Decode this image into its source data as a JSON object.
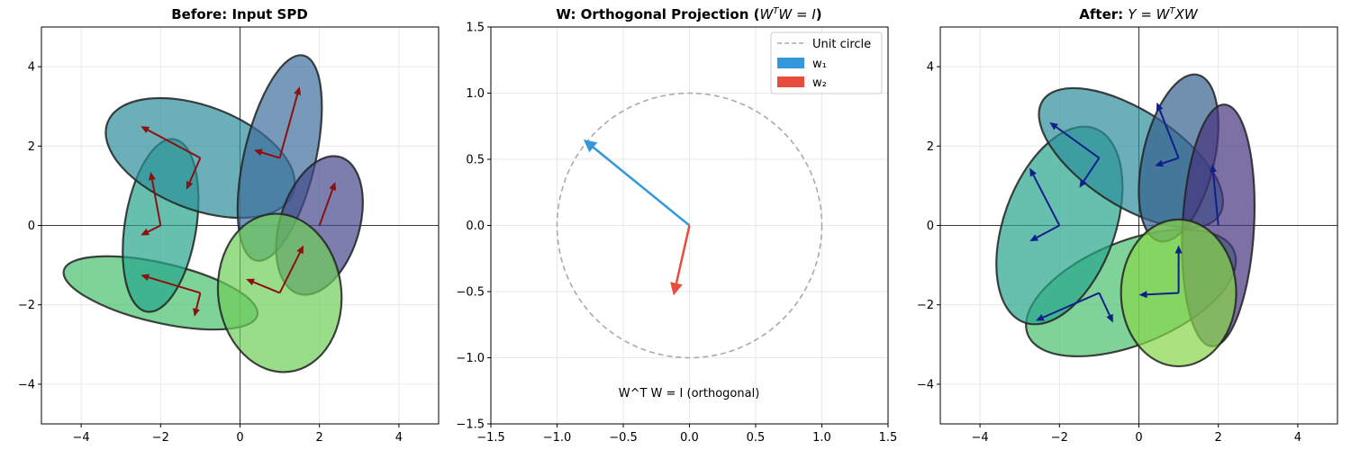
{
  "figure": {
    "panels": [
      {
        "title": "Before: Input SPD",
        "xlim": [
          -5,
          5
        ],
        "ylim": [
          -5,
          5
        ],
        "xticks": [
          -4,
          -2,
          0,
          2,
          4
        ],
        "yticks": [
          -4,
          -2,
          0,
          2,
          4
        ]
      },
      {
        "title_prefix": "W: Orthogonal Projection (",
        "title_math": "W",
        "title_sup": "T",
        "title_math2": "W = I",
        "title_suffix": ")",
        "xlim": [
          -1.5,
          1.5
        ],
        "ylim": [
          -1.5,
          1.5
        ],
        "xticks": [
          -1.5,
          -1.0,
          -0.5,
          0.0,
          0.5,
          1.0,
          1.5
        ],
        "yticks": [
          -1.5,
          -1.0,
          -0.5,
          0.0,
          0.5,
          1.0,
          1.5
        ],
        "annotation": "W^T W = I (orthogonal)",
        "legend": [
          {
            "label": "Unit circle",
            "style": "dashed",
            "color": "#aaaaaa"
          },
          {
            "label": "w₁",
            "style": "patch",
            "color": "#3498db"
          },
          {
            "label": "w₂",
            "style": "patch",
            "color": "#e74c3c"
          }
        ]
      },
      {
        "title_prefix": "After: ",
        "title_math": "Y = W",
        "title_sup": "T",
        "title_math2": "XW",
        "xlim": [
          -5,
          5
        ],
        "ylim": [
          -5,
          5
        ],
        "xticks": [
          -4,
          -2,
          0,
          2,
          4
        ],
        "yticks": [
          -4,
          -2,
          0,
          2,
          4
        ]
      }
    ]
  },
  "chart_data": [
    {
      "type": "scatter",
      "title": "Before: Input SPD",
      "xlim": [
        -5,
        5
      ],
      "ylim": [
        -5,
        5
      ],
      "grid": true,
      "arrow_color": "#8b1010",
      "ellipses": [
        {
          "center": [
            -2.0,
            -1.7
          ],
          "width": 5.0,
          "height": 1.5,
          "angle": -13,
          "color": "#47c16e"
        },
        {
          "center": [
            -2.0,
            0.0
          ],
          "width": 4.4,
          "height": 1.8,
          "angle": 81,
          "color": "#27a58a"
        },
        {
          "center": [
            -1.0,
            1.7
          ],
          "width": 5.0,
          "height": 2.6,
          "angle": -21,
          "color": "#2c8e9a"
        },
        {
          "center": [
            1.0,
            1.7
          ],
          "width": 5.3,
          "height": 1.8,
          "angle": 77,
          "color": "#3d6e9c"
        },
        {
          "center": [
            2.0,
            0.0
          ],
          "width": 3.6,
          "height": 2.0,
          "angle": 73,
          "color": "#44498b"
        },
        {
          "center": [
            1.0,
            -1.7
          ],
          "width": 4.0,
          "height": 3.1,
          "angle": 97,
          "color": "#6dcd59"
        }
      ],
      "arrows": [
        {
          "from": [
            -1.0,
            -1.7
          ],
          "to": [
            -2.5,
            -1.25
          ]
        },
        {
          "from": [
            -1.0,
            -1.7
          ],
          "to": [
            -1.15,
            -2.3
          ]
        },
        {
          "from": [
            -2.0,
            0.0
          ],
          "to": [
            -2.25,
            1.35
          ]
        },
        {
          "from": [
            -2.0,
            0.0
          ],
          "to": [
            -2.5,
            -0.25
          ]
        },
        {
          "from": [
            -1.0,
            1.7
          ],
          "to": [
            -2.5,
            2.5
          ]
        },
        {
          "from": [
            -1.0,
            1.7
          ],
          "to": [
            -1.35,
            0.9
          ]
        },
        {
          "from": [
            1.0,
            1.7
          ],
          "to": [
            1.5,
            3.5
          ]
        },
        {
          "from": [
            1.0,
            1.7
          ],
          "to": [
            0.35,
            1.9
          ]
        },
        {
          "from": [
            2.0,
            0.0
          ],
          "to": [
            2.4,
            1.1
          ]
        },
        {
          "from": [
            1.0,
            -1.7
          ],
          "to": [
            1.6,
            -0.5
          ]
        },
        {
          "from": [
            1.0,
            -1.7
          ],
          "to": [
            0.15,
            -1.35
          ]
        }
      ]
    },
    {
      "type": "line",
      "title": "W: Orthogonal Projection (W^T W = I)",
      "xlim": [
        -1.5,
        1.5
      ],
      "ylim": [
        -1.5,
        1.5
      ],
      "grid": true,
      "unit_circle": {
        "radius": 1.0,
        "color": "#aaaaaa"
      },
      "series": [
        {
          "name": "Unit circle",
          "x": [],
          "y": []
        },
        {
          "name": "w₁",
          "x": [
            0.0,
            -0.8
          ],
          "y": [
            0.0,
            0.65
          ],
          "color": "#3498db"
        },
        {
          "name": "w₂",
          "x": [
            0.0,
            -0.12
          ],
          "y": [
            0.0,
            -0.53
          ],
          "color": "#e74c3c"
        }
      ]
    },
    {
      "type": "scatter",
      "title": "After: Y = W^T X W",
      "xlim": [
        -5,
        5
      ],
      "ylim": [
        -5,
        5
      ],
      "grid": true,
      "arrow_color": "#10208b",
      "ellipses": [
        {
          "center": [
            -0.2,
            -1.7
          ],
          "width": 5.6,
          "height": 2.6,
          "angle": 22,
          "color": "#48c16e"
        },
        {
          "center": [
            -2.0,
            0.0
          ],
          "width": 5.2,
          "height": 2.8,
          "angle": 70,
          "color": "#27a58a"
        },
        {
          "center": [
            -0.2,
            1.7
          ],
          "width": 5.3,
          "height": 2.4,
          "angle": -33,
          "color": "#2c8e9a"
        },
        {
          "center": [
            1.0,
            1.7
          ],
          "width": 4.3,
          "height": 1.8,
          "angle": 77,
          "color": "#355f8d"
        },
        {
          "center": [
            2.0,
            0.0
          ],
          "width": 6.1,
          "height": 1.8,
          "angle": 87,
          "color": "#46337e"
        },
        {
          "center": [
            1.0,
            -1.7
          ],
          "width": 3.7,
          "height": 2.9,
          "angle": 90,
          "color": "#86d549"
        }
      ],
      "arrows": [
        {
          "from": [
            -1.0,
            -1.7
          ],
          "to": [
            -2.6,
            -2.4
          ]
        },
        {
          "from": [
            -1.0,
            -1.7
          ],
          "to": [
            -0.65,
            -2.45
          ]
        },
        {
          "from": [
            -2.0,
            0.0
          ],
          "to": [
            -2.75,
            1.45
          ]
        },
        {
          "from": [
            -2.0,
            0.0
          ],
          "to": [
            -2.75,
            -0.4
          ]
        },
        {
          "from": [
            -1.0,
            1.7
          ],
          "to": [
            -2.25,
            2.6
          ]
        },
        {
          "from": [
            -1.0,
            1.7
          ],
          "to": [
            -1.5,
            0.95
          ]
        },
        {
          "from": [
            1.0,
            1.7
          ],
          "to": [
            0.45,
            3.1
          ]
        },
        {
          "from": [
            1.0,
            1.7
          ],
          "to": [
            0.4,
            1.5
          ]
        },
        {
          "from": [
            2.0,
            0.0
          ],
          "to": [
            1.85,
            1.55
          ]
        },
        {
          "from": [
            1.0,
            -1.7
          ],
          "to": [
            1.0,
            -0.5
          ]
        },
        {
          "from": [
            1.0,
            -1.7
          ],
          "to": [
            0.0,
            -1.75
          ]
        }
      ]
    }
  ]
}
